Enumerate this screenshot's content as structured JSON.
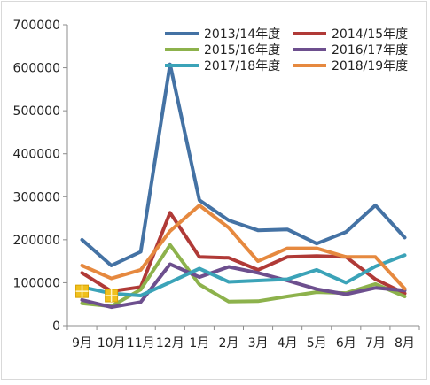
{
  "chart_data": {
    "type": "line",
    "title": "",
    "xlabel": "",
    "ylabel": "",
    "ylim": [
      0,
      700000
    ],
    "yticks": [
      0,
      100000,
      200000,
      300000,
      400000,
      500000,
      600000,
      700000
    ],
    "ytick_labels": [
      "0",
      "100000",
      "200000",
      "300000",
      "400000",
      "500000",
      "600000",
      "700000"
    ],
    "categories": [
      "9月",
      "10月",
      "11月",
      "12月",
      "1月",
      "2月",
      "3月",
      "4月",
      "5月",
      "6月",
      "7月",
      "8月"
    ],
    "grid": false,
    "legend": "top-right, inside plot, 2 columns",
    "series": [
      {
        "name": "2013/14年度",
        "color": "#4472a4",
        "values": [
          200000,
          140000,
          172000,
          608000,
          292000,
          245000,
          222000,
          224000,
          191000,
          218000,
          280000,
          205000
        ]
      },
      {
        "name": "2014/15年度",
        "color": "#b03a37",
        "values": [
          123000,
          80000,
          90000,
          263000,
          160000,
          158000,
          130000,
          160000,
          162000,
          160000,
          108000,
          75000
        ]
      },
      {
        "name": "2015/16年度",
        "color": "#8db24c",
        "values": [
          52000,
          45000,
          84000,
          188000,
          96000,
          56000,
          57000,
          68000,
          78000,
          76000,
          97000,
          68000
        ]
      },
      {
        "name": "2016/17年度",
        "color": "#6d4f8e",
        "values": [
          60000,
          43000,
          55000,
          143000,
          113000,
          137000,
          123000,
          105000,
          85000,
          73000,
          88000,
          82000
        ]
      },
      {
        "name": "2017/18年度",
        "color": "#3ba3b8",
        "values": [
          90000,
          75000,
          70000,
          101000,
          133000,
          102000,
          105000,
          108000,
          130000,
          100000,
          138000,
          164000
        ]
      },
      {
        "name": "2018/19年度",
        "color": "#e6893f",
        "values": [
          140000,
          110000,
          130000,
          220000,
          280000,
          228000,
          150000,
          180000,
          180000,
          160000,
          160000,
          86000
        ]
      }
    ],
    "markers": [
      {
        "category": "9月",
        "value": 80000,
        "color": "#f0c01c"
      },
      {
        "category": "10月",
        "value": 70000,
        "color": "#f0c01c"
      }
    ]
  }
}
